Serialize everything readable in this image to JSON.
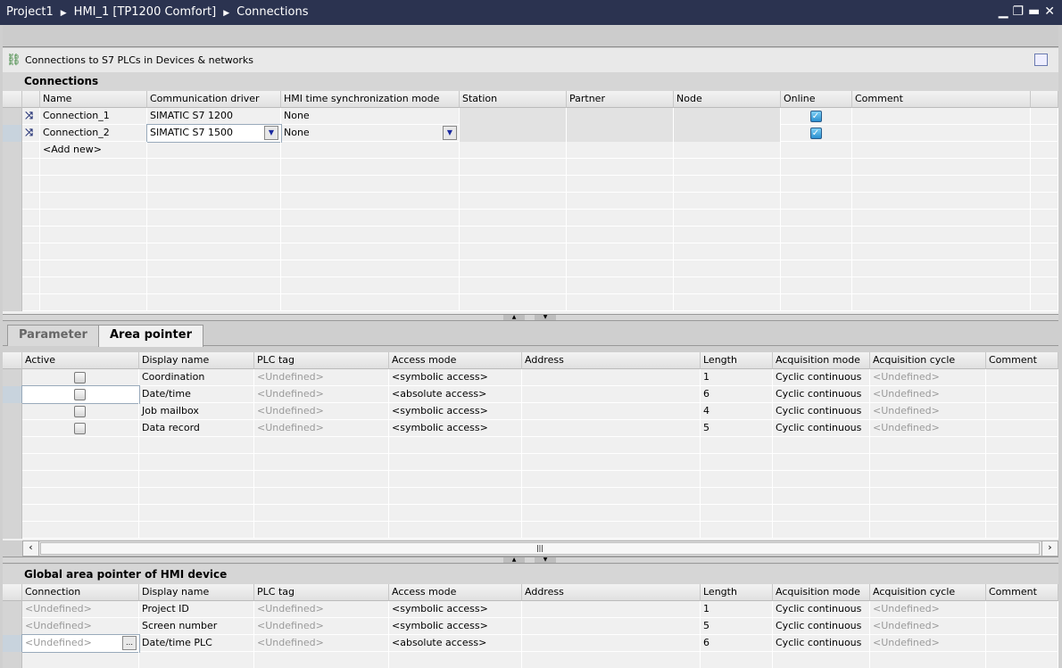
{
  "title": {
    "crumbs": [
      "Project1",
      "HMI_1 [TP1200 Comfort]",
      "Connections"
    ]
  },
  "window_buttons": [
    "minimize-icon",
    "restore-icon",
    "maximize-icon",
    "close-icon"
  ],
  "link": {
    "label": "Connections to S7 PLCs in Devices & networks",
    "icon": "network-icon"
  },
  "connections": {
    "title": "Connections",
    "columns": [
      "Name",
      "Communication driver",
      "HMI time synchronization mode",
      "Station",
      "Partner",
      "Node",
      "Online",
      "Comment"
    ],
    "rows": [
      {
        "name": "Connection_1",
        "driver": "SIMATIC S7 1200",
        "sync": "None",
        "station": "",
        "partner": "",
        "node": "",
        "online": true,
        "comment": ""
      },
      {
        "name": "Connection_2",
        "driver": "SIMATIC S7 1500",
        "sync": "None",
        "station": "",
        "partner": "",
        "node": "",
        "online": true,
        "comment": ""
      }
    ],
    "add_new": "<Add new>"
  },
  "tabs": [
    {
      "label": "Parameter",
      "active": false
    },
    {
      "label": "Area pointer",
      "active": true
    }
  ],
  "area_pointer": {
    "columns": [
      "Active",
      "Display name",
      "PLC tag",
      "Access mode",
      "Address",
      "Length",
      "Acquisition mode",
      "Acquisition cycle",
      "Comment"
    ],
    "rows": [
      {
        "active": false,
        "display": "Coordination",
        "tag": "<Undefined>",
        "access": "<symbolic access>",
        "address": "",
        "length": "1",
        "mode": "Cyclic continuous",
        "cycle": "<Undefined>",
        "comment": ""
      },
      {
        "active": false,
        "display": "Date/time",
        "tag": "<Undefined>",
        "access": "<absolute access>",
        "address": "",
        "length": "6",
        "mode": "Cyclic continuous",
        "cycle": "<Undefined>",
        "comment": ""
      },
      {
        "active": false,
        "display": "Job mailbox",
        "tag": "<Undefined>",
        "access": "<symbolic access>",
        "address": "",
        "length": "4",
        "mode": "Cyclic continuous",
        "cycle": "<Undefined>",
        "comment": ""
      },
      {
        "active": false,
        "display": "Data record",
        "tag": "<Undefined>",
        "access": "<symbolic access>",
        "address": "",
        "length": "5",
        "mode": "Cyclic continuous",
        "cycle": "<Undefined>",
        "comment": ""
      }
    ]
  },
  "global": {
    "title": "Global area pointer of HMI device",
    "columns": [
      "Connection",
      "Display name",
      "PLC tag",
      "Access mode",
      "Address",
      "Length",
      "Acquisition mode",
      "Acquisition cycle",
      "Comment"
    ],
    "rows": [
      {
        "connection": "<Undefined>",
        "display": "Project ID",
        "tag": "<Undefined>",
        "access": "<symbolic access>",
        "address": "",
        "length": "1",
        "mode": "Cyclic continuous",
        "cycle": "<Undefined>",
        "comment": ""
      },
      {
        "connection": "<Undefined>",
        "display": "Screen number",
        "tag": "<Undefined>",
        "access": "<symbolic access>",
        "address": "",
        "length": "5",
        "mode": "Cyclic continuous",
        "cycle": "<Undefined>",
        "comment": ""
      },
      {
        "connection": "<Undefined>",
        "display": "Date/time PLC",
        "tag": "<Undefined>",
        "access": "<absolute access>",
        "address": "",
        "length": "6",
        "mode": "Cyclic continuous",
        "cycle": "<Undefined>",
        "comment": ""
      }
    ]
  }
}
